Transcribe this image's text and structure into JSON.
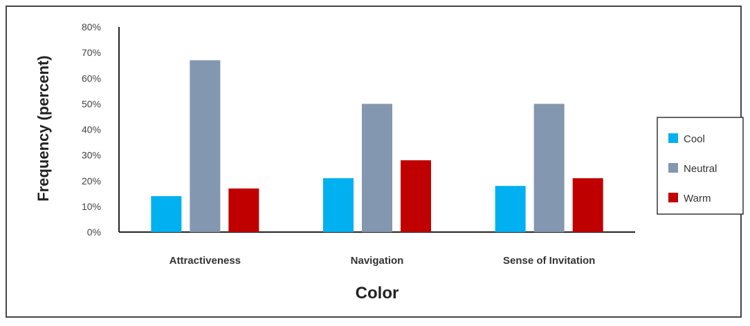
{
  "chart_data": {
    "type": "bar",
    "title": "",
    "xlabel": "Color",
    "ylabel": "Frequency (percent)",
    "categories": [
      "Attractiveness",
      "Navigation",
      "Sense of Invitation"
    ],
    "series": [
      {
        "name": "Cool",
        "color": "#00b0f0",
        "values": [
          14,
          21,
          18
        ]
      },
      {
        "name": "Neutral",
        "color": "#8497b0",
        "values": [
          67,
          50,
          50
        ]
      },
      {
        "name": "Warm",
        "color": "#c00000",
        "values": [
          17,
          28,
          21
        ]
      }
    ],
    "ylim": [
      0,
      80
    ],
    "yticks": [
      0,
      10,
      20,
      30,
      40,
      50,
      60,
      70,
      80
    ],
    "ytick_labels": [
      "0%",
      "10%",
      "20%",
      "30%",
      "40%",
      "50%",
      "60%",
      "70%",
      "80%"
    ],
    "grid": false,
    "legend_position": "right"
  }
}
